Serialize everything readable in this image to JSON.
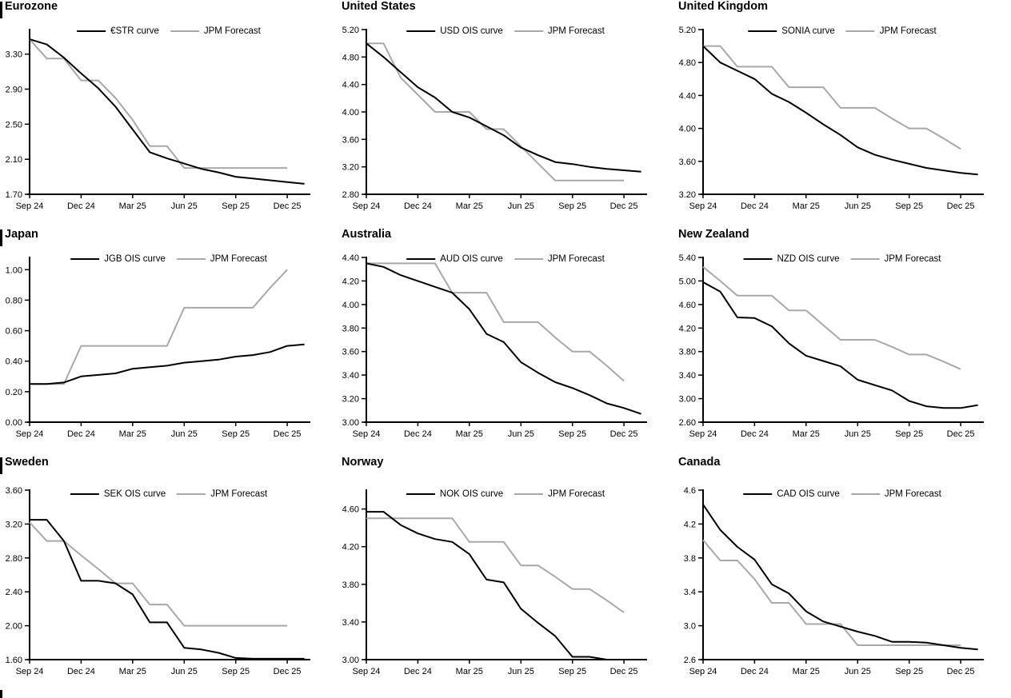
{
  "page": {
    "description": "Grid of nine overnight-rate curve charts with JPM forecasts",
    "forecast_label": "JPM Forecast",
    "colors": {
      "market_line": "#000000",
      "forecast_line": "#a8a8a8"
    }
  },
  "chart_data": [
    {
      "type": "line",
      "title": "Eurozone",
      "x_start": "Sep 24",
      "x_interval": "monthly",
      "x_tick_labels": [
        "Sep 24",
        "Dec 24",
        "Mar 25",
        "Jun 25",
        "Sep 25",
        "Dec 25"
      ],
      "x_tick_months": [
        0,
        3,
        6,
        9,
        12,
        15
      ],
      "ylim": [
        1.7,
        3.58
      ],
      "y_ticks": [
        "1.70",
        "2.10",
        "2.50",
        "2.90",
        "3.30"
      ],
      "series": [
        {
          "name": "€STR curve",
          "color": "#000000",
          "values": [
            3.47,
            3.41,
            3.26,
            3.08,
            2.91,
            2.7,
            2.44,
            2.18,
            2.11,
            2.05,
            1.99,
            1.95,
            1.9,
            1.88,
            1.86,
            1.84,
            1.82
          ]
        },
        {
          "name": "JPM Forecast",
          "color": "#a8a8a8",
          "values": [
            3.47,
            3.25,
            3.25,
            3.0,
            3.0,
            2.8,
            2.55,
            2.25,
            2.25,
            2.0,
            2.0,
            2.0,
            2.0,
            2.0,
            2.0,
            2.0
          ]
        }
      ]
    },
    {
      "type": "line",
      "title": "United States",
      "x_start": "Sep 24",
      "x_interval": "monthly",
      "x_tick_labels": [
        "Sep 24",
        "Dec 24",
        "Mar 25",
        "Jun 25",
        "Sep 25",
        "Dec 25"
      ],
      "x_tick_months": [
        0,
        3,
        6,
        9,
        12,
        15
      ],
      "ylim": [
        2.8,
        5.2
      ],
      "y_ticks": [
        "2.80",
        "3.20",
        "3.60",
        "4.00",
        "4.40",
        "4.80",
        "5.20"
      ],
      "series": [
        {
          "name": "USD OIS curve",
          "color": "#000000",
          "values": [
            5.0,
            4.8,
            4.58,
            4.36,
            4.21,
            4.0,
            3.92,
            3.79,
            3.66,
            3.48,
            3.37,
            3.27,
            3.24,
            3.2,
            3.17,
            3.15,
            3.13
          ]
        },
        {
          "name": "JPM Forecast",
          "color": "#a8a8a8",
          "values": [
            5.0,
            5.0,
            4.5,
            4.25,
            4.0,
            4.0,
            4.0,
            3.75,
            3.75,
            3.5,
            3.25,
            3.0,
            3.0,
            3.0,
            3.0,
            3.0
          ]
        }
      ]
    },
    {
      "type": "line",
      "title": "United Kingdom",
      "x_start": "Sep 24",
      "x_interval": "monthly",
      "x_tick_labels": [
        "Sep 24",
        "Dec 24",
        "Mar 25",
        "Jun 25",
        "Sep 25",
        "Dec 25"
      ],
      "x_tick_months": [
        0,
        3,
        6,
        9,
        12,
        15
      ],
      "ylim": [
        3.2,
        5.2
      ],
      "y_ticks": [
        "3.20",
        "3.60",
        "4.00",
        "4.40",
        "4.80",
        "5.20"
      ],
      "series": [
        {
          "name": "SONIA curve",
          "color": "#000000",
          "values": [
            5.0,
            4.8,
            4.7,
            4.6,
            4.42,
            4.32,
            4.19,
            4.05,
            3.92,
            3.77,
            3.68,
            3.62,
            3.57,
            3.52,
            3.49,
            3.46,
            3.44
          ]
        },
        {
          "name": "JPM Forecast",
          "color": "#a8a8a8",
          "values": [
            5.0,
            5.0,
            4.75,
            4.75,
            4.75,
            4.5,
            4.5,
            4.5,
            4.25,
            4.25,
            4.25,
            4.12,
            4.0,
            4.0,
            3.88,
            3.75
          ]
        }
      ]
    },
    {
      "type": "line",
      "title": "Japan",
      "x_start": "Sep 24",
      "x_interval": "monthly",
      "x_tick_labels": [
        "Sep 24",
        "Dec 24",
        "Mar 25",
        "Jun 25",
        "Sep 25",
        "Dec 25"
      ],
      "x_tick_months": [
        0,
        3,
        6,
        9,
        12,
        15
      ],
      "ylim": [
        0.0,
        1.08
      ],
      "y_ticks": [
        "0.00",
        "0.20",
        "0.40",
        "0.60",
        "0.80",
        "1.00"
      ],
      "series": [
        {
          "name": "JGB OIS curve",
          "color": "#000000",
          "values": [
            0.25,
            0.25,
            0.26,
            0.3,
            0.31,
            0.32,
            0.35,
            0.36,
            0.37,
            0.39,
            0.4,
            0.41,
            0.43,
            0.44,
            0.46,
            0.5,
            0.51
          ]
        },
        {
          "name": "JPM Forecast",
          "color": "#a8a8a8",
          "values": [
            0.25,
            0.25,
            0.25,
            0.5,
            0.5,
            0.5,
            0.5,
            0.5,
            0.5,
            0.75,
            0.75,
            0.75,
            0.75,
            0.75,
            0.88,
            1.0
          ]
        }
      ]
    },
    {
      "type": "line",
      "title": "Australia",
      "x_start": "Sep 24",
      "x_interval": "monthly",
      "x_tick_labels": [
        "Sep 24",
        "Dec 24",
        "Mar 25",
        "Jun 25",
        "Sep 25",
        "Dec 25"
      ],
      "x_tick_months": [
        0,
        3,
        6,
        9,
        12,
        15
      ],
      "ylim": [
        3.0,
        4.4
      ],
      "y_ticks": [
        "3.00",
        "3.20",
        "3.40",
        "3.60",
        "3.80",
        "4.00",
        "4.20",
        "4.40"
      ],
      "series": [
        {
          "name": "AUD OIS curve",
          "color": "#000000",
          "values": [
            4.35,
            4.32,
            4.25,
            4.2,
            4.15,
            4.1,
            3.96,
            3.75,
            3.68,
            3.51,
            3.42,
            3.34,
            3.29,
            3.23,
            3.16,
            3.12,
            3.07
          ]
        },
        {
          "name": "JPM Forecast",
          "color": "#a8a8a8",
          "values": [
            4.35,
            4.35,
            4.35,
            4.35,
            4.35,
            4.1,
            4.1,
            4.1,
            3.85,
            3.85,
            3.85,
            3.72,
            3.6,
            3.6,
            3.48,
            3.35
          ]
        }
      ]
    },
    {
      "type": "line",
      "title": "New Zealand",
      "x_start": "Sep 24",
      "x_interval": "monthly",
      "x_tick_labels": [
        "Sep 24",
        "Dec 24",
        "Mar 25",
        "Jun 25",
        "Sep 25",
        "Dec 25"
      ],
      "x_tick_months": [
        0,
        3,
        6,
        9,
        12,
        15
      ],
      "ylim": [
        2.6,
        5.4
      ],
      "y_ticks": [
        "2.60",
        "3.00",
        "3.40",
        "3.80",
        "4.20",
        "4.60",
        "5.00",
        "5.40"
      ],
      "series": [
        {
          "name": "NZD OIS curve",
          "color": "#000000",
          "values": [
            4.98,
            4.82,
            4.38,
            4.37,
            4.23,
            3.94,
            3.73,
            3.64,
            3.55,
            3.32,
            3.23,
            3.14,
            2.96,
            2.87,
            2.84,
            2.84,
            2.89
          ]
        },
        {
          "name": "JPM Forecast",
          "color": "#a8a8a8",
          "values": [
            5.24,
            5.0,
            4.75,
            4.75,
            4.75,
            4.5,
            4.5,
            4.25,
            4.0,
            4.0,
            4.0,
            3.88,
            3.75,
            3.75,
            3.63,
            3.5
          ]
        }
      ]
    },
    {
      "type": "line",
      "title": "Sweden",
      "x_start": "Sep 24",
      "x_interval": "monthly",
      "x_tick_labels": [
        "Sep 24",
        "Dec 24",
        "Mar 25",
        "Jun 25",
        "Sep 25",
        "Dec 25"
      ],
      "x_tick_months": [
        0,
        3,
        6,
        9,
        12,
        15
      ],
      "ylim": [
        1.6,
        3.6
      ],
      "y_ticks": [
        "1.60",
        "2.00",
        "2.40",
        "2.80",
        "3.20",
        "3.60"
      ],
      "series": [
        {
          "name": "SEK OIS curve",
          "color": "#000000",
          "values": [
            3.25,
            3.25,
            3.0,
            2.53,
            2.53,
            2.5,
            2.37,
            2.04,
            2.04,
            1.74,
            1.72,
            1.68,
            1.62,
            1.61,
            1.61,
            1.61,
            1.61
          ]
        },
        {
          "name": "JPM Forecast",
          "color": "#a8a8a8",
          "values": [
            3.22,
            3.0,
            3.0,
            2.83,
            2.67,
            2.5,
            2.5,
            2.25,
            2.25,
            2.0,
            2.0,
            2.0,
            2.0,
            2.0,
            2.0,
            2.0
          ]
        }
      ]
    },
    {
      "type": "line",
      "title": "Norway",
      "x_start": "Sep 24",
      "x_interval": "monthly",
      "x_tick_labels": [
        "Sep 24",
        "Dec 24",
        "Mar 25",
        "Jun 25",
        "Sep 25",
        "Dec 25"
      ],
      "x_tick_months": [
        0,
        3,
        6,
        9,
        12,
        15
      ],
      "ylim": [
        3.0,
        4.8
      ],
      "y_ticks": [
        "3.00",
        "3.40",
        "3.80",
        "4.20",
        "4.60"
      ],
      "series": [
        {
          "name": "NOK OIS curve",
          "color": "#000000",
          "values": [
            4.57,
            4.57,
            4.43,
            4.34,
            4.28,
            4.25,
            4.12,
            3.85,
            3.82,
            3.54,
            3.39,
            3.25,
            3.03,
            3.03,
            3.0,
            3.0,
            3.0
          ]
        },
        {
          "name": "JPM Forecast",
          "color": "#a8a8a8",
          "values": [
            4.5,
            4.5,
            4.5,
            4.5,
            4.5,
            4.5,
            4.25,
            4.25,
            4.25,
            4.0,
            4.0,
            3.88,
            3.75,
            3.75,
            3.63,
            3.5
          ]
        }
      ]
    },
    {
      "type": "line",
      "title": "Canada",
      "x_start": "Sep 24",
      "x_interval": "monthly",
      "x_tick_labels": [
        "Sep 24",
        "Dec 24",
        "Mar 25",
        "Jun 25",
        "Sep 25",
        "Dec 25"
      ],
      "x_tick_months": [
        0,
        3,
        6,
        9,
        12,
        15
      ],
      "ylim": [
        2.6,
        4.6
      ],
      "y_ticks": [
        "2.6",
        "3.0",
        "3.4",
        "3.8",
        "4.2",
        "4.6"
      ],
      "series": [
        {
          "name": "CAD OIS curve",
          "color": "#000000",
          "values": [
            4.43,
            4.13,
            3.93,
            3.78,
            3.49,
            3.38,
            3.17,
            3.05,
            2.99,
            2.93,
            2.88,
            2.81,
            2.81,
            2.8,
            2.77,
            2.74,
            2.72
          ]
        },
        {
          "name": "JPM Forecast",
          "color": "#a8a8a8",
          "values": [
            4.01,
            3.77,
            3.77,
            3.55,
            3.27,
            3.27,
            3.02,
            3.02,
            3.02,
            2.77,
            2.77,
            2.77,
            2.77,
            2.77,
            2.77,
            2.77
          ]
        }
      ]
    }
  ]
}
